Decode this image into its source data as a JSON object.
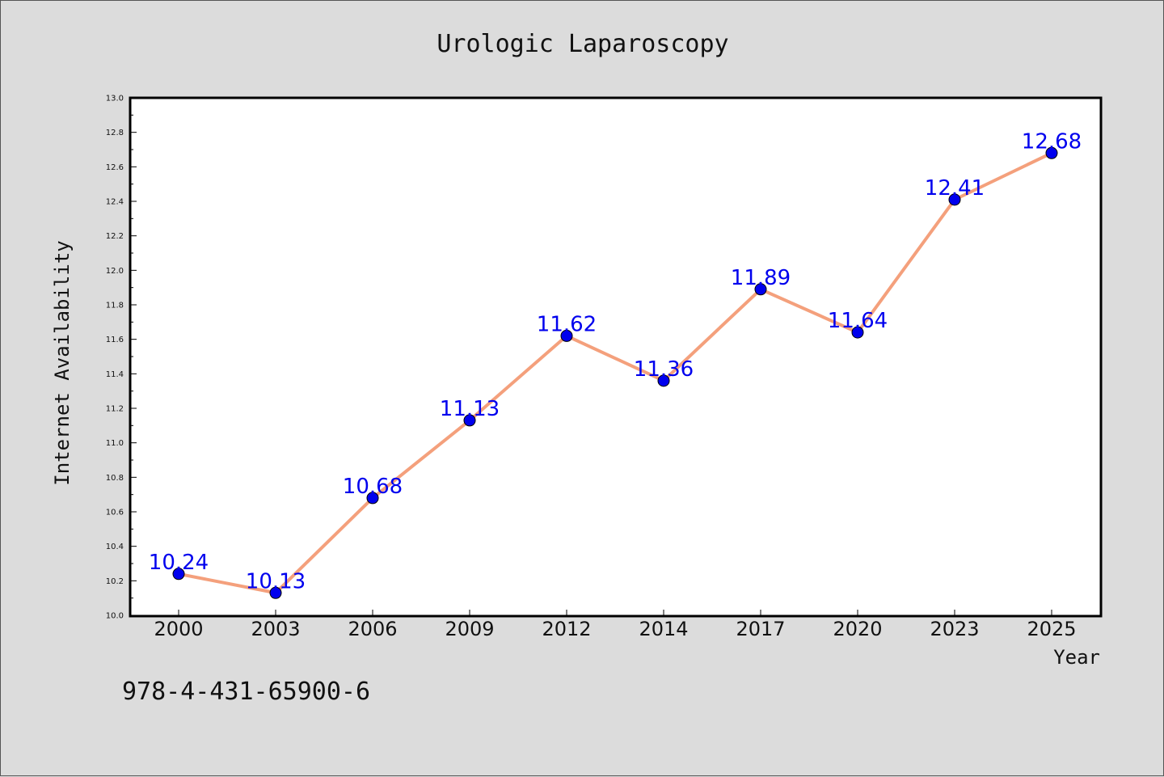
{
  "chart_data": {
    "type": "line",
    "title": "Urologic Laparoscopy",
    "xlabel": "Year",
    "ylabel": "Internet Availability",
    "categories": [
      "2000",
      "2003",
      "2006",
      "2009",
      "2012",
      "2014",
      "2017",
      "2020",
      "2023",
      "2025"
    ],
    "series": [
      {
        "values": [
          10.24,
          10.13,
          10.68,
          11.13,
          11.62,
          11.36,
          11.89,
          11.64,
          12.41,
          12.68
        ],
        "labels": [
          "10.24",
          "10.13",
          "10.68",
          "11.13",
          "11.62",
          "11.36",
          "11.89",
          "11.64",
          "12.41",
          "12.68"
        ]
      }
    ],
    "ylim": [
      10.0,
      13.0
    ],
    "yticks": [
      "10.0",
      "10.2",
      "10.4",
      "10.6",
      "10.8",
      "11.0",
      "11.2",
      "11.4",
      "11.6",
      "11.8",
      "12.0",
      "12.2",
      "12.4",
      "12.6",
      "12.8",
      "13.0"
    ],
    "grid": false,
    "data_labels": true,
    "colors": {
      "line": "#f4a07c",
      "marker": "#0000ee",
      "label": "#0000ee",
      "background": "#dcdcdc",
      "plot_background": "#ffffff"
    }
  },
  "footer": {
    "text": "978-4-431-65900-6"
  }
}
